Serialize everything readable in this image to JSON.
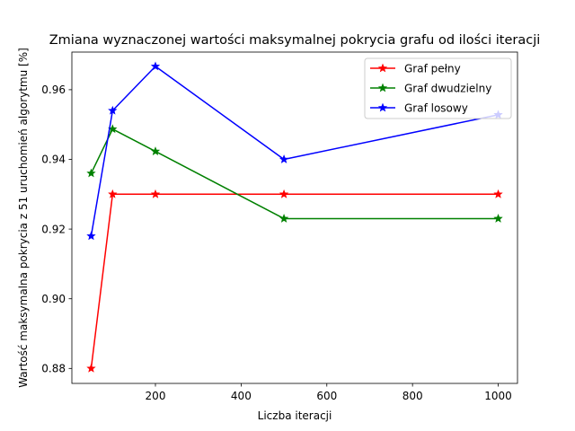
{
  "chart_data": {
    "type": "line",
    "title": "Zmiana wyznaczonej wartości maksymalnej pokrycia grafu od ilości iteracji",
    "xlabel": "Liczba iteracji",
    "ylabel": "Wartość maksymalna pokrycia z 51 uruchomień algorytmu [%]",
    "x": [
      50,
      100,
      200,
      500,
      1000
    ],
    "xlim": [
      5,
      1045
    ],
    "ylim": [
      0.8757,
      0.9708
    ],
    "xticks": [
      "200",
      "400",
      "600",
      "800",
      "1000"
    ],
    "xtick_values": [
      200,
      400,
      600,
      800,
      1000
    ],
    "yticks": [
      "0.88",
      "0.90",
      "0.92",
      "0.94",
      "0.96"
    ],
    "ytick_values": [
      0.88,
      0.9,
      0.92,
      0.94,
      0.96
    ],
    "grid": false,
    "legend_position": "top-right",
    "marker": "star",
    "series": [
      {
        "name": "Graf pełny",
        "color": "#ff0000",
        "values": [
          0.88,
          0.93,
          0.93,
          0.93,
          0.93
        ]
      },
      {
        "name": "Graf dwudzielny",
        "color": "#008000",
        "values": [
          0.936,
          0.9487,
          0.9423,
          0.923,
          0.923
        ]
      },
      {
        "name": "Graf losowy",
        "color": "#0000ff",
        "values": [
          0.918,
          0.954,
          0.9667,
          0.94,
          0.9528
        ]
      }
    ]
  }
}
